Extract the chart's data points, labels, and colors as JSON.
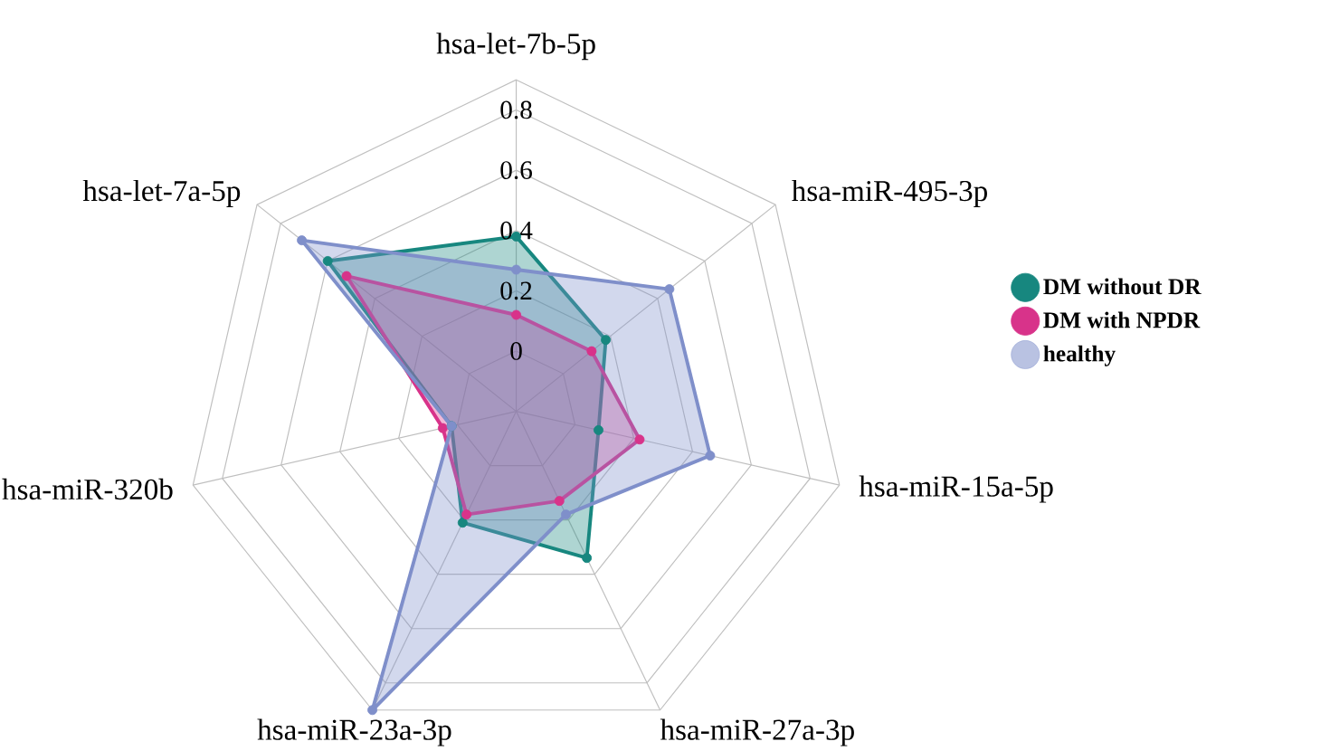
{
  "chart_data": {
    "type": "radar",
    "categories": [
      "hsa-let-7b-5p",
      "hsa-miR-495-3p",
      "hsa-miR-15a-5p",
      "hsa-miR-27a-3p",
      "hsa-miR-23a-3p",
      "hsa-miR-320b",
      "hsa-let-7a-5p"
    ],
    "series": [
      {
        "name": "DM without DR",
        "color": "#17877f",
        "values": [
          0.38,
          0.18,
          0.08,
          0.34,
          0.21,
          0.02,
          0.6
        ]
      },
      {
        "name": "DM with NPDR",
        "color": "#d8338a",
        "values": [
          0.12,
          0.12,
          0.22,
          0.13,
          0.18,
          0.05,
          0.52
        ]
      },
      {
        "name": "healthy",
        "color": "#7f8fca",
        "values": [
          0.27,
          0.45,
          0.46,
          0.18,
          0.9,
          0.02,
          0.71
        ]
      }
    ],
    "ylim": [
      -0.2,
      0.9
    ],
    "yticks": [
      0,
      0.2,
      0.4,
      0.6,
      0.8
    ],
    "grid": true,
    "marker": "circle",
    "legend": "right"
  }
}
